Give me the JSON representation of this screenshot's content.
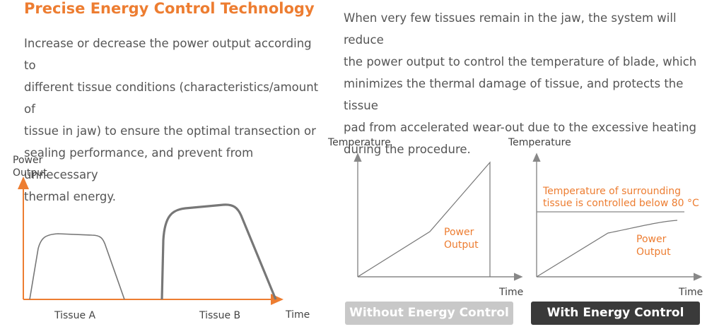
{
  "title": "Precise Energy Control Technology",
  "left_text": [
    "Increase or decrease the power output according to",
    "different tissue conditions (characteristics/amount of",
    "tissue in jaw) to ensure the optimal transection or",
    "sealing performance, and prevent from unnecessary",
    "thermal energy."
  ],
  "right_text": [
    "When very few tissues remain in the jaw, the system will reduce",
    "the power output to control the temperature of blade, which",
    "minimizes the thermal damage of tissue, and protects the tissue",
    "pad from accelerated wear-out due to the excessive heating",
    "during the procedure."
  ],
  "colors": {
    "accent": "#ed7d31",
    "dark_badge": "#3a3a3a",
    "light_badge": "#c8c8c8"
  },
  "chart_power": {
    "ylabel_1": "Power",
    "ylabel_2": "Output",
    "xlabel": "Time",
    "tissue_a": "Tissue A",
    "tissue_b": "Tissue B"
  },
  "chart_without": {
    "ylabel": "Temperature",
    "xlabel": "Time",
    "series_1": "Power",
    "series_2": "Output",
    "badge": "Without Energy Control"
  },
  "chart_with": {
    "ylabel": "Temperature",
    "xlabel": "Time",
    "threshold_1": "Temperature of surrounding",
    "threshold_2": "tissue is controlled below 80 °C",
    "series_1": "Power",
    "series_2": "Output",
    "badge": "With Energy Control"
  }
}
